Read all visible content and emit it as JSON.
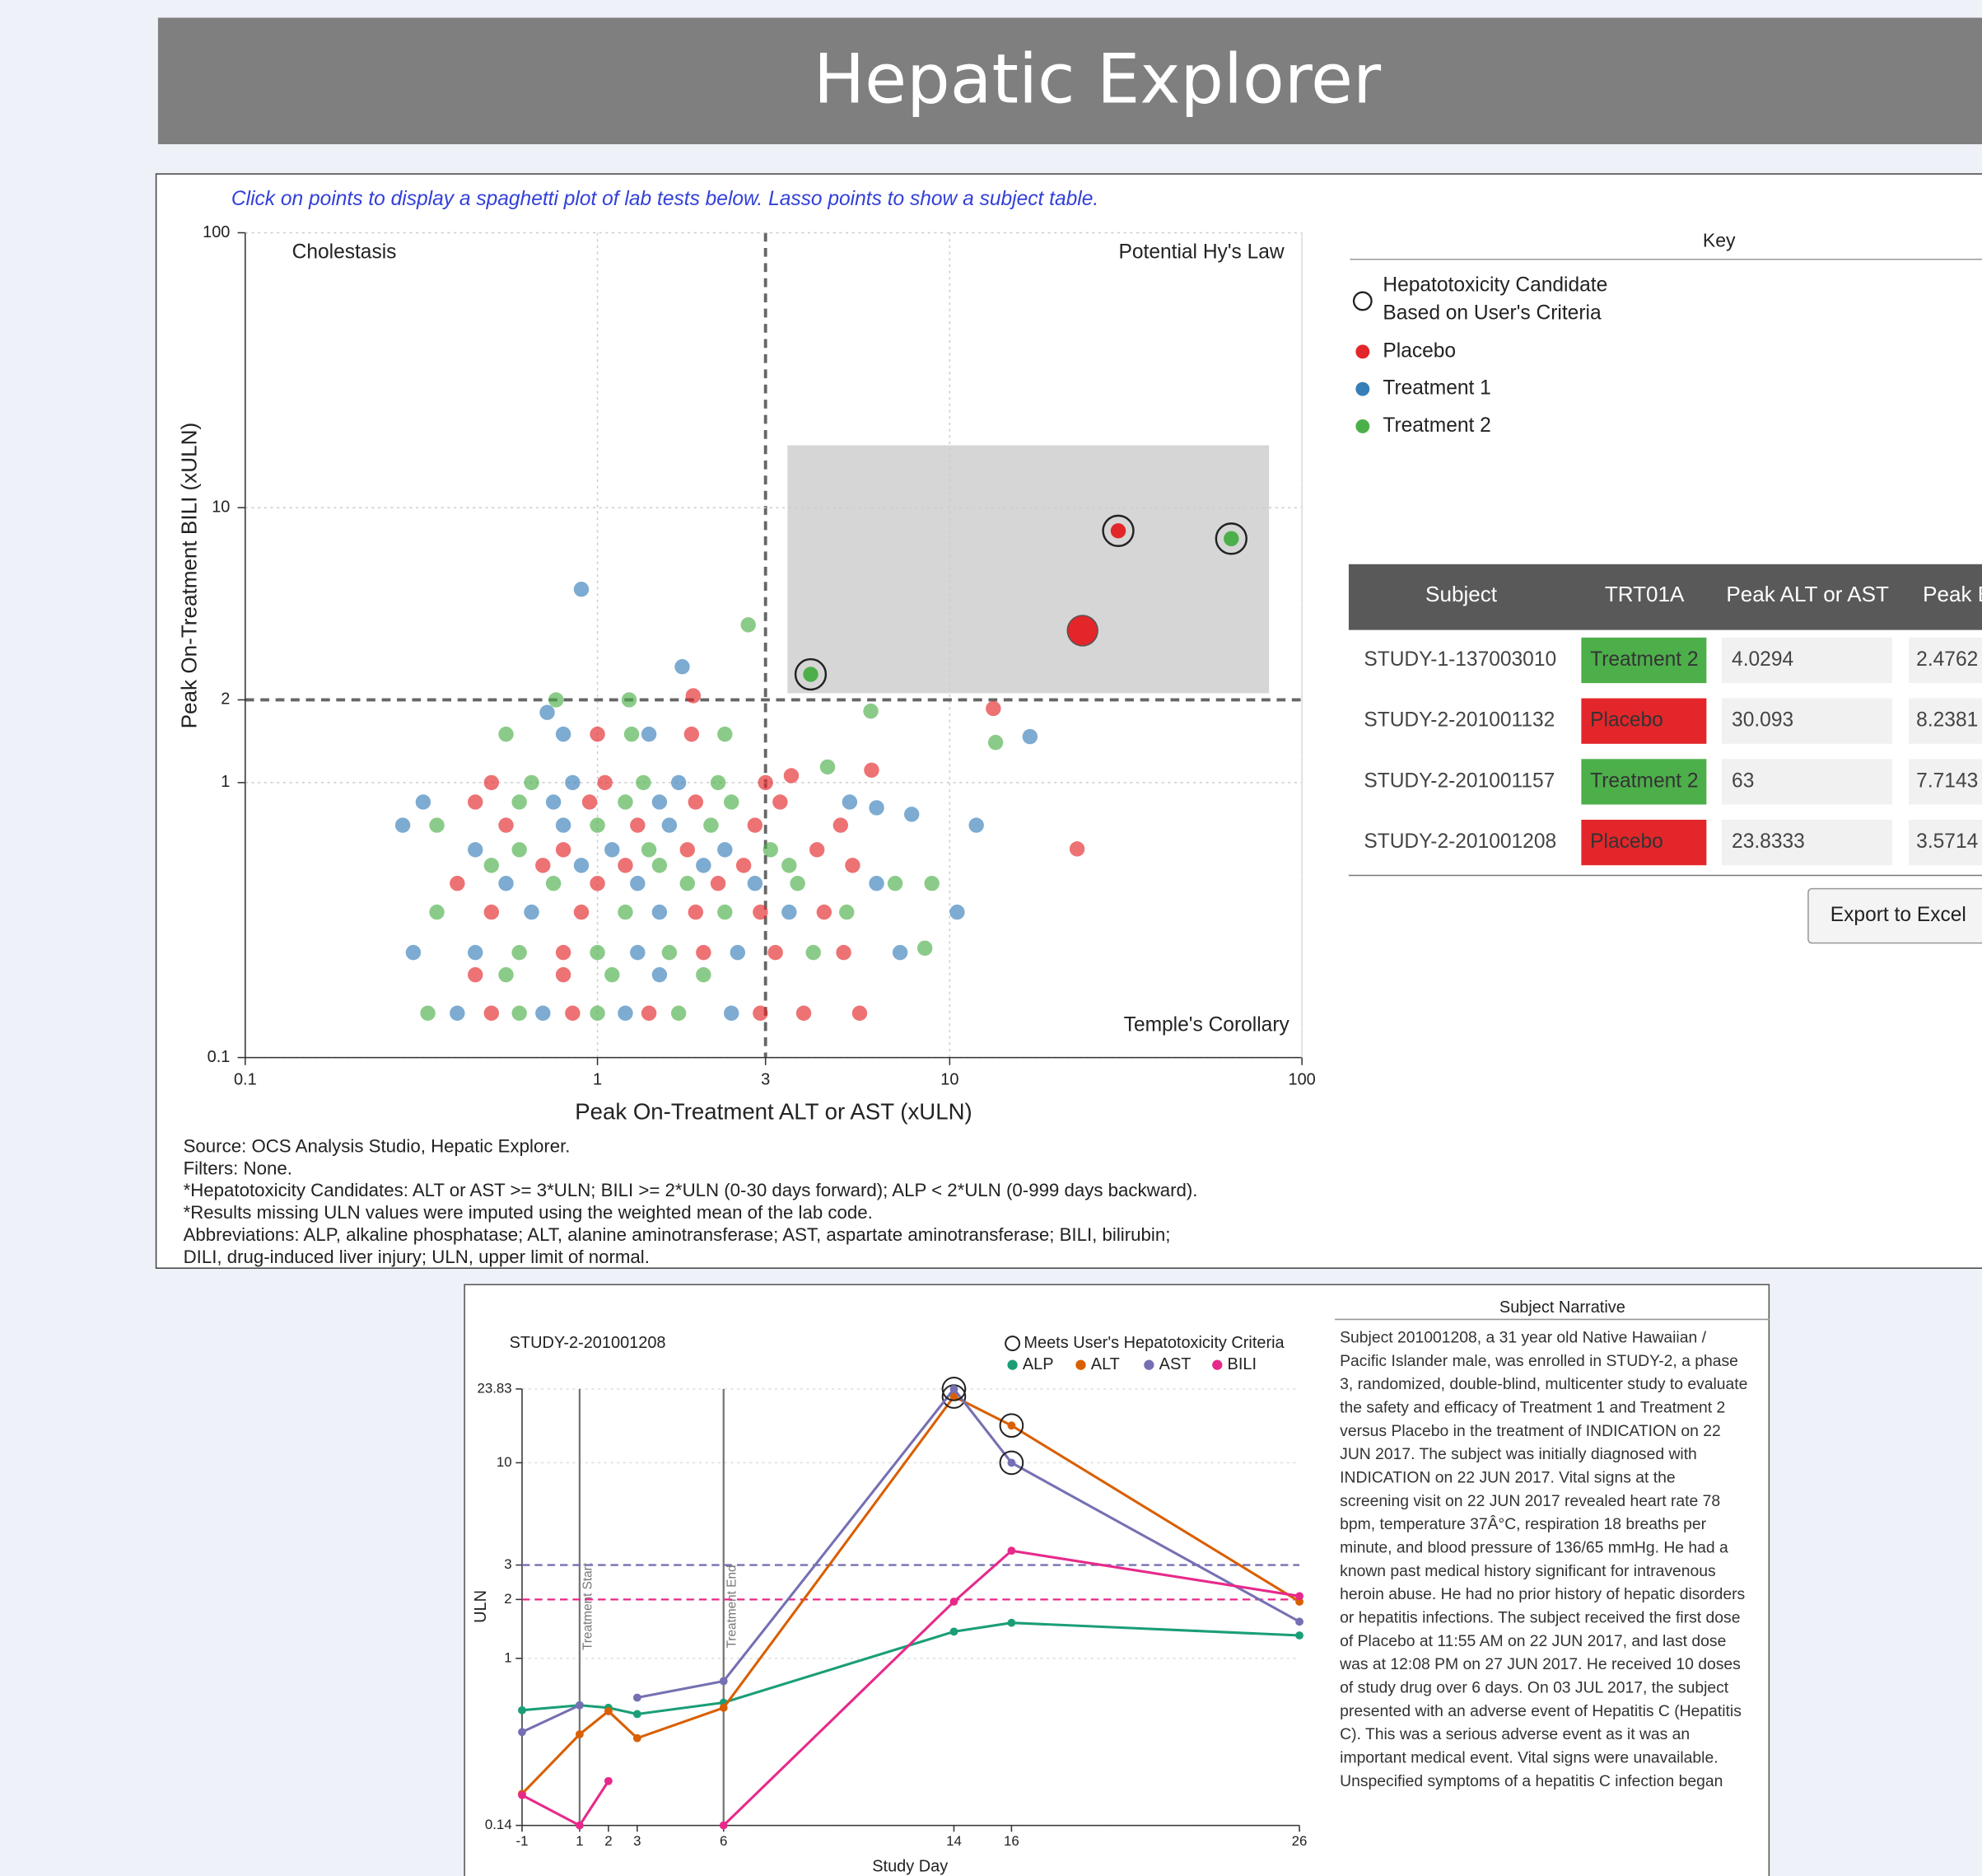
{
  "header": {
    "title": "Hepatic Explorer"
  },
  "chart_data": [
    {
      "type": "scatter",
      "instruction": "Click on points to display a spaghetti plot of lab tests below. Lasso points to show a subject table.",
      "quadrants": {
        "top_left": "Cholestasis",
        "top_right": "Potential Hy's Law",
        "bottom_right": "Temple's Corollary"
      },
      "x_label": "Peak On-Treatment ALT or AST (xULN)",
      "y_label": "Peak On-Treatment BILI (xULN)",
      "log_x": true,
      "log_y": true,
      "xlim": [
        0.1,
        100
      ],
      "ylim": [
        0.1,
        100
      ],
      "xticks": [
        0.1,
        1,
        3,
        10,
        100
      ],
      "yticks": [
        0.1,
        1,
        2,
        10,
        100
      ],
      "x_threshold": 3,
      "y_threshold": 2,
      "grid": true,
      "series": [
        {
          "name": "Placebo",
          "color": "#e3262a",
          "x": [
            1.87,
            13.3,
            23.0,
            5.55,
            3.85,
            6.0,
            3.55,
            0.5,
            0.85,
            1.4,
            2.9,
            0.45,
            0.8,
            0.8,
            2.0,
            3.2,
            5.0,
            0.5,
            0.9,
            1.9,
            2.9,
            4.4,
            0.4,
            1.0,
            2.2,
            0.7,
            1.2,
            2.6,
            5.3,
            0.8,
            1.8,
            4.2,
            0.55,
            1.3,
            2.8,
            4.9,
            0.45,
            0.95,
            1.9,
            3.3,
            0.5,
            1.05,
            3.0,
            1.0,
            1.85
          ],
          "values": [
            2.07,
            1.86,
            0.574,
            0.145,
            0.145,
            1.11,
            1.06,
            0.145,
            0.145,
            0.145,
            0.145,
            0.2,
            0.2,
            0.241,
            0.241,
            0.241,
            0.241,
            0.338,
            0.338,
            0.338,
            0.338,
            0.338,
            0.43,
            0.43,
            0.43,
            0.5,
            0.5,
            0.5,
            0.5,
            0.57,
            0.57,
            0.57,
            0.7,
            0.7,
            0.7,
            0.7,
            0.85,
            0.85,
            0.85,
            0.85,
            1.0,
            1.0,
            1.0,
            1.5,
            1.5
          ]
        },
        {
          "name": "Treatment 1",
          "color": "#377eb8",
          "x": [
            0.9,
            1.74,
            16.9,
            11.9,
            7.23,
            10.5,
            7.8,
            6.2,
            0.72,
            0.4,
            0.7,
            1.2,
            2.4,
            1.5,
            0.3,
            0.45,
            1.3,
            2.5,
            0.65,
            1.5,
            3.5,
            0.55,
            1.3,
            2.8,
            6.2,
            0.9,
            2.0,
            0.45,
            1.1,
            2.3,
            0.28,
            0.8,
            1.6,
            0.32,
            0.75,
            1.5,
            5.2,
            0.85,
            1.7,
            0.8,
            1.4
          ],
          "values": [
            5.05,
            2.64,
            1.47,
            0.7,
            0.241,
            0.338,
            0.767,
            0.81,
            1.8,
            0.145,
            0.145,
            0.145,
            0.145,
            0.2,
            0.241,
            0.241,
            0.241,
            0.241,
            0.338,
            0.338,
            0.338,
            0.43,
            0.43,
            0.43,
            0.43,
            0.5,
            0.5,
            0.57,
            0.57,
            0.57,
            0.7,
            0.7,
            0.7,
            0.85,
            0.85,
            0.85,
            0.85,
            1.0,
            1.0,
            1.5,
            1.5
          ]
        },
        {
          "name": "Treatment 2",
          "color": "#4daf4a",
          "x": [
            2.68,
            5.97,
            13.5,
            8.5,
            8.9,
            4.5,
            0.763,
            1.23,
            0.33,
            0.6,
            1.0,
            1.7,
            0.55,
            1.1,
            2.0,
            0.6,
            1.0,
            1.6,
            4.1,
            0.35,
            1.2,
            2.3,
            5.1,
            0.75,
            1.8,
            3.7,
            7.0,
            0.5,
            1.5,
            3.5,
            0.6,
            1.4,
            3.1,
            0.35,
            1.0,
            2.1,
            0.6,
            1.2,
            2.4,
            0.65,
            1.35,
            2.2,
            0.55,
            1.25,
            2.3
          ],
          "values": [
            3.75,
            1.82,
            1.4,
            0.25,
            0.43,
            1.14,
            2.0,
            2.0,
            0.145,
            0.145,
            0.145,
            0.145,
            0.2,
            0.2,
            0.2,
            0.241,
            0.241,
            0.241,
            0.241,
            0.338,
            0.338,
            0.338,
            0.338,
            0.43,
            0.43,
            0.43,
            0.43,
            0.5,
            0.5,
            0.5,
            0.57,
            0.57,
            0.57,
            0.7,
            0.7,
            0.7,
            0.85,
            0.85,
            0.85,
            1.0,
            1.0,
            1.0,
            1.5,
            1.5,
            1.5
          ]
        }
      ]
    },
    {
      "type": "line",
      "subject": "STUDY-2-201001208",
      "legend_title": "Meets User's Hepatotoxicity Criteria",
      "x_label": "Study Day",
      "y_label": "ULN",
      "log_y": true,
      "x": [
        -1,
        1,
        2,
        3,
        6,
        14,
        16,
        26
      ],
      "xlim": [
        -1,
        26
      ],
      "ylim": [
        0.14,
        23.83
      ],
      "xticks": [
        -1,
        1,
        2,
        3,
        6,
        14,
        16,
        26
      ],
      "yticks": [
        0.14,
        1,
        2,
        3,
        10,
        23.83
      ],
      "day_markers": [
        {
          "x": 1,
          "label": "Treatment Start"
        },
        {
          "x": 6,
          "label": "Treatment End"
        }
      ],
      "reference_lines": [
        {
          "value": 3,
          "color": "#7570b3"
        },
        {
          "value": 2,
          "color": "#e7298a"
        }
      ],
      "series": [
        {
          "name": "ALP",
          "color": "#1b9e77",
          "criteria": false,
          "values": [
            0.543,
            0.576,
            0.559,
            0.519,
            0.594,
            1.37,
            1.52,
            1.31
          ]
        },
        {
          "name": "ALT",
          "color": "#d95f02",
          "criteria": true,
          "values": [
            0.203,
            0.409,
            0.537,
            0.391,
            0.559,
            21.8,
            15.5,
            1.95
          ]
        },
        {
          "name": "AST",
          "color": "#7570b3",
          "criteria": true,
          "values": [
            0.42,
            0.576,
            null,
            0.63,
            0.765,
            23.83,
            10,
            1.54
          ]
        },
        {
          "name": "BILI",
          "color": "#e7298a",
          "criteria": false,
          "values": [
            0.2,
            0.14,
            0.236,
            null,
            0.14,
            1.95,
            3.55,
            2.08
          ]
        }
      ]
    }
  ],
  "footnotes": [
    "Source: OCS Analysis Studio, Hepatic Explorer.",
    "Filters: None.",
    "*Hepatotoxicity Candidates: ALT or AST >= 3*ULN; BILI >= 2*ULN (0-30 days forward); ALP < 2*ULN (0-999 days backward).",
    "*Results missing ULN values were imputed using the weighted mean of the lab code.",
    "Abbreviations: ALP, alkaline phosphatase; ALT, alanine aminotransferase; AST, aspartate aminotransferase; BILI, bilirubin;",
    "DILI, drug-induced liver injury; ULN, upper limit of normal."
  ],
  "key": {
    "title": "Key",
    "candidate_label": [
      "Hepatotoxicity Candidate",
      "Based on User's Criteria"
    ]
  },
  "table": {
    "columns": [
      "Subject",
      "TRT01A",
      "Peak ALT or AST",
      "Peak BILI"
    ],
    "rows": [
      [
        "STUDY-1-137003010",
        "Treatment 2",
        "4.0294",
        "2.4762"
      ],
      [
        "STUDY-2-201001132",
        "Placebo",
        "30.093",
        "8.2381"
      ],
      [
        "STUDY-2-201001157",
        "Treatment 2",
        "63",
        "7.7143"
      ],
      [
        "STUDY-2-201001208",
        "Placebo",
        "23.8333",
        "3.5714"
      ]
    ],
    "button": "Export to Excel"
  },
  "narrative": {
    "title": "Subject Narrative",
    "lines": [
      "Subject 201001208, a 31 year old Native Hawaiian /",
      "Pacific Islander male, was enrolled in STUDY-2, a phase",
      "3, randomized, double-blind, multicenter study to evaluate",
      "the safety and efficacy of Treatment 1 and Treatment 2",
      "versus Placebo in the treatment of INDICATION on 22",
      "JUN 2017. The subject was initially diagnosed with",
      "INDICATION on 22 JUN 2017. Vital signs at the",
      "screening visit on 22 JUN 2017 revealed heart rate 78",
      "bpm, temperature 37Â°C, respiration 18 breaths per",
      "minute, and blood pressure of 136/65 mmHg. He had a",
      "known past medical history significant for intravenous",
      "heroin abuse. He had no prior history of hepatic disorders",
      "or hepatitis infections. The subject received the first dose",
      "of Placebo at 11:55 AM on 22 JUN 2017, and last dose",
      "was at 12:08 PM on 27 JUN 2017. He received 10 doses",
      "of study drug over 6 days. On 03 JUL 2017, the subject",
      "presented with an adverse event of Hepatitis C (Hepatitis",
      "C). This was a serious adverse event as it was an",
      "important medical event. Vital signs were unavailable.",
      "Unspecified symptoms of a hepatitis C infection began"
    ]
  }
}
